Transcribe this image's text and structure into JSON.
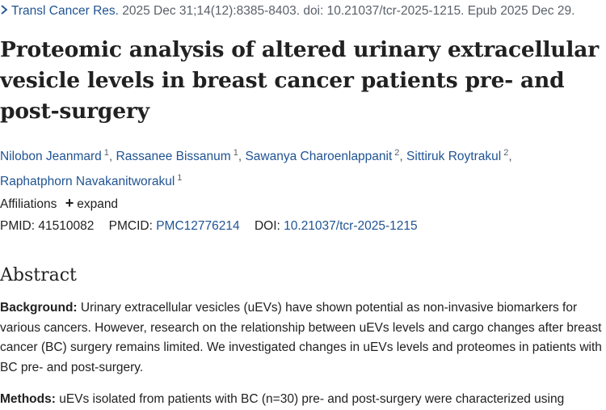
{
  "citation": {
    "journal": "Transl Cancer Res.",
    "details": "2025 Dec 31;14(12):8385-8403. doi: 10.21037/tcr-2025-1215. Epub 2025 Dec 29."
  },
  "title": "Proteomic analysis of altered urinary extracellular vesicle levels in breast cancer patients pre- and post-surgery",
  "authors": [
    {
      "name": "Nilobon Jeanmard",
      "aff": "1"
    },
    {
      "name": "Rassanee Bissanum",
      "aff": "1"
    },
    {
      "name": "Sawanya Charoenlappanit",
      "aff": "2"
    },
    {
      "name": "Sittiruk Roytrakul",
      "aff": "2"
    },
    {
      "name": "Raphatphorn Navakanitworakul",
      "aff": "1"
    }
  ],
  "affiliations": {
    "label": "Affiliations",
    "expand_label": "expand"
  },
  "ids": {
    "pmid_label": "PMID:",
    "pmid": "41510082",
    "pmcid_label": "PMCID:",
    "pmcid": "PMC12776214",
    "doi_label": "DOI:",
    "doi": "10.21037/tcr-2025-1215"
  },
  "abstract": {
    "heading": "Abstract",
    "background_label": "Background:",
    "background_text": " Urinary extracellular vesicles (uEVs) have shown potential as non-invasive biomarkers for various cancers. However, research on the relationship between uEVs levels and cargo changes after breast cancer (BC) surgery remains limited. We investigated changes in uEVs levels and proteomes in patients with BC pre- and post-surgery.",
    "methods_label": "Methods:",
    "methods_text": " uEVs isolated from patients with BC (n=30) pre- and post-surgery were characterized using"
  }
}
